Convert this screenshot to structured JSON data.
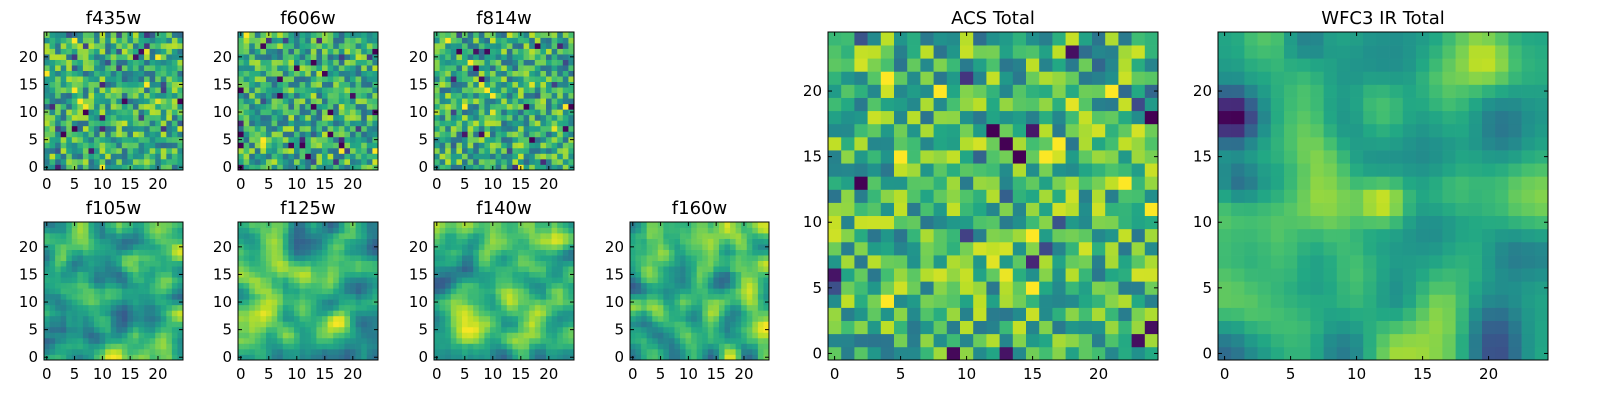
{
  "chart_data": [
    {
      "type": "heatmap",
      "title": "f435w",
      "xticks": [
        0,
        5,
        10,
        15,
        20
      ],
      "yticks": [
        0,
        5,
        10,
        15,
        20
      ],
      "xlim": [
        -0.5,
        24.5
      ],
      "ylim": [
        -0.5,
        24.5
      ],
      "grid": false,
      "colormap": "viridis",
      "seed": 11,
      "smooth": 0,
      "base": 0.62
    },
    {
      "type": "heatmap",
      "title": "f606w",
      "xticks": [
        0,
        5,
        10,
        15,
        20
      ],
      "yticks": [
        0,
        5,
        10,
        15,
        20
      ],
      "xlim": [
        -0.5,
        24.5
      ],
      "ylim": [
        -0.5,
        24.5
      ],
      "grid": false,
      "colormap": "viridis",
      "seed": 23,
      "smooth": 0,
      "base": 0.62
    },
    {
      "type": "heatmap",
      "title": "f814w",
      "xticks": [
        0,
        5,
        10,
        15,
        20
      ],
      "yticks": [
        0,
        5,
        10,
        15,
        20
      ],
      "xlim": [
        -0.5,
        24.5
      ],
      "ylim": [
        -0.5,
        24.5
      ],
      "grid": false,
      "colormap": "viridis",
      "seed": 37,
      "smooth": 0,
      "base": 0.62
    },
    {
      "type": "heatmap",
      "title": "f105w",
      "xticks": [
        0,
        5,
        10,
        15,
        20
      ],
      "yticks": [
        0,
        5,
        10,
        15,
        20
      ],
      "xlim": [
        -0.5,
        24.5
      ],
      "ylim": [
        -0.5,
        24.5
      ],
      "grid": false,
      "colormap": "viridis",
      "seed": 41,
      "smooth": 2,
      "base": 0.64
    },
    {
      "type": "heatmap",
      "title": "f125w",
      "xticks": [
        0,
        5,
        10,
        15,
        20
      ],
      "yticks": [
        0,
        5,
        10,
        15,
        20
      ],
      "xlim": [
        -0.5,
        24.5
      ],
      "ylim": [
        -0.5,
        24.5
      ],
      "grid": false,
      "colormap": "viridis",
      "seed": 53,
      "smooth": 2,
      "base": 0.64
    },
    {
      "type": "heatmap",
      "title": "f140w",
      "xticks": [
        0,
        5,
        10,
        15,
        20
      ],
      "yticks": [
        0,
        5,
        10,
        15,
        20
      ],
      "xlim": [
        -0.5,
        24.5
      ],
      "ylim": [
        -0.5,
        24.5
      ],
      "grid": false,
      "colormap": "viridis",
      "seed": 67,
      "smooth": 2,
      "base": 0.64
    },
    {
      "type": "heatmap",
      "title": "f160w",
      "xticks": [
        0,
        5,
        10,
        15,
        20
      ],
      "yticks": [
        0,
        5,
        10,
        15,
        20
      ],
      "xlim": [
        -0.5,
        24.5
      ],
      "ylim": [
        -0.5,
        24.5
      ],
      "grid": false,
      "colormap": "viridis",
      "seed": 79,
      "smooth": 2,
      "base": 0.64
    },
    {
      "type": "heatmap",
      "title": "ACS Total",
      "xticks": [
        0,
        5,
        10,
        15,
        20
      ],
      "yticks": [
        0,
        5,
        10,
        15,
        20
      ],
      "xlim": [
        -0.5,
        24.5
      ],
      "ylim": [
        -0.5,
        24.5
      ],
      "grid": false,
      "colormap": "viridis",
      "seed": 97,
      "smooth": 0,
      "base": 0.66
    },
    {
      "type": "heatmap",
      "title": "WFC3 IR Total",
      "xticks": [
        0,
        5,
        10,
        15,
        20
      ],
      "yticks": [
        0,
        5,
        10,
        15,
        20
      ],
      "xlim": [
        -0.5,
        24.5
      ],
      "ylim": [
        -0.5,
        24.5
      ],
      "grid": false,
      "colormap": "viridis",
      "seed": 131,
      "smooth": 3,
      "base": 0.6,
      "features": [
        {
          "cx": 20,
          "cy": 21.5,
          "amp": 0.4,
          "sigma": 1.6
        },
        {
          "cx": 12,
          "cy": 11.5,
          "amp": 0.35,
          "sigma": 1.3
        },
        {
          "cx": 0.5,
          "cy": 18,
          "amp": -0.75,
          "sigma": 1.6
        },
        {
          "cx": 6,
          "cy": 24,
          "amp": -0.5,
          "sigma": 1.5
        },
        {
          "cx": 1,
          "cy": 13,
          "amp": -0.3,
          "sigma": 1.2
        }
      ]
    }
  ]
}
